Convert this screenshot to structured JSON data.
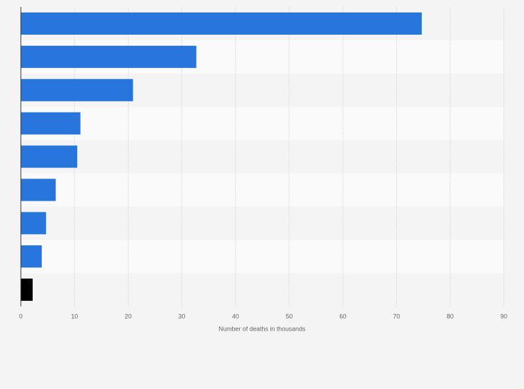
{
  "chart_data": {
    "type": "bar",
    "orientation": "horizontal",
    "x_label": "Number of deaths in thousands",
    "categories": [
      null,
      null,
      null,
      null,
      null,
      null,
      null,
      null,
      null
    ],
    "values": [
      74.7,
      32.7,
      20.9,
      11.1,
      10.5,
      6.5,
      4.7,
      3.9,
      2.2
    ],
    "colors": [
      "#2876dd",
      "#2876dd",
      "#2876dd",
      "#2876dd",
      "#2876dd",
      "#2876dd",
      "#2876dd",
      "#2876dd",
      "#000000"
    ],
    "xlim": [
      0,
      90
    ],
    "xticks": [
      0,
      10,
      20,
      30,
      40,
      50,
      60,
      70,
      80,
      90
    ],
    "grid": true
  }
}
